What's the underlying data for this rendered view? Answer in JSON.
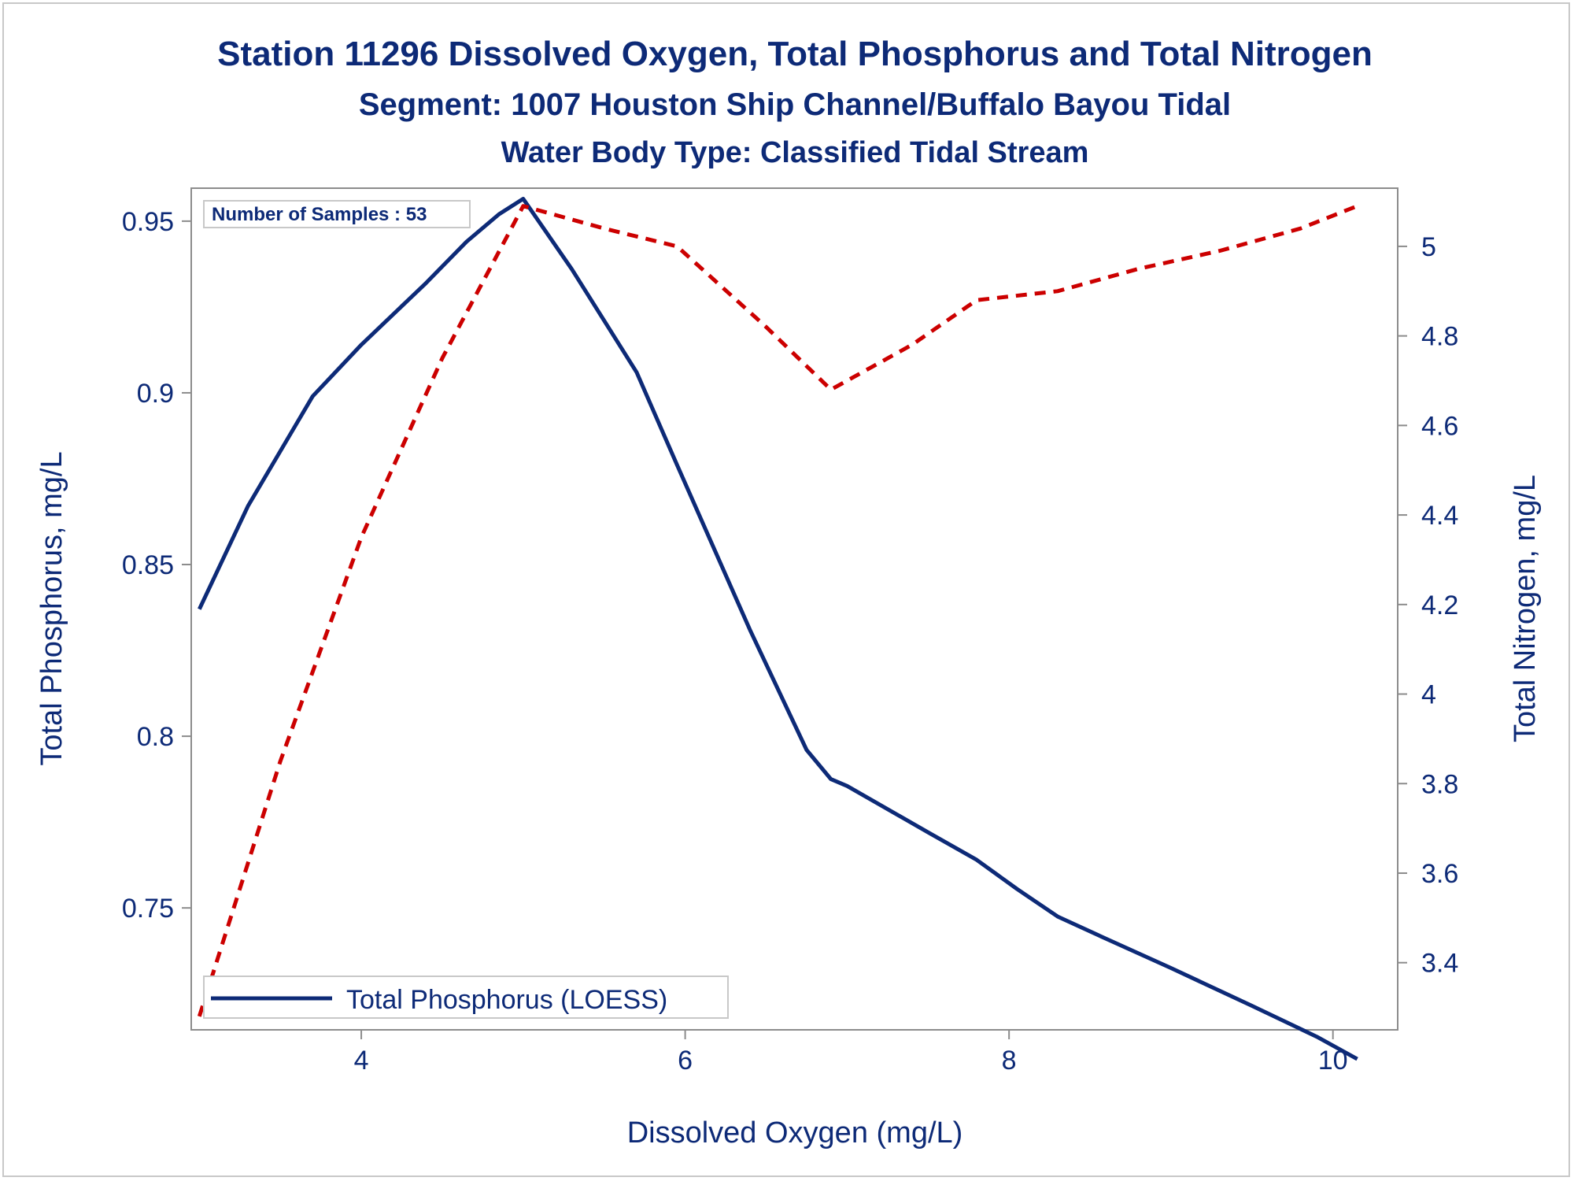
{
  "titles": {
    "line1": "Station 11296  Dissolved Oxygen, Total Phosphorus and Total Nitrogen",
    "line2": "Segment: 1007  Houston Ship Channel/Buffalo Bayou Tidal",
    "line3": "Water Body Type: Classified Tidal Stream"
  },
  "inset": {
    "samples_label": "Number of Samples : 53"
  },
  "legend": {
    "entries": [
      "Total Phosphorus (LOESS)"
    ]
  },
  "colors": {
    "navy": "#0d2a77",
    "red": "#cc0000",
    "frame": "#8c8c8c"
  },
  "chart_data": {
    "type": "line",
    "xlabel": "Dissolved Oxygen (mg/L)",
    "ylabel": "Total Phosphorus, mg/L",
    "y2label": "Total Nitrogen, mg/L",
    "xlim": [
      2.95,
      10.4
    ],
    "ylim": [
      0.7145,
      0.9596
    ],
    "y2lim": [
      3.25,
      5.13
    ],
    "xticks": [
      "4",
      "6",
      "8",
      "10"
    ],
    "yticks": [
      "0.75",
      "0.8",
      "0.85",
      "0.9",
      "0.95"
    ],
    "y2ticks": [
      "3.4",
      "3.6",
      "3.8",
      "4",
      "4.2",
      "4.4",
      "4.6",
      "4.8",
      "5"
    ],
    "legend_position": "bottom-left",
    "series": [
      {
        "name": "Total Phosphorus (LOESS)",
        "axis": "left",
        "style": "solid",
        "x": [
          3.0,
          3.3,
          3.7,
          4.0,
          4.4,
          4.65,
          4.85,
          5.0,
          5.3,
          5.7,
          5.95,
          6.4,
          6.75,
          6.9,
          7.0,
          7.5,
          7.8,
          8.05,
          8.3,
          8.6,
          9.0,
          9.5,
          9.9,
          10.15
        ],
        "values": [
          0.837,
          0.867,
          0.899,
          0.914,
          0.932,
          0.944,
          0.952,
          0.9565,
          0.936,
          0.906,
          0.879,
          0.831,
          0.796,
          0.7875,
          0.7855,
          0.772,
          0.764,
          0.7555,
          0.7475,
          0.741,
          0.7325,
          0.7215,
          0.7125,
          0.706
        ]
      },
      {
        "name": "",
        "axis": "right",
        "style": "dashed",
        "x": [
          3.0,
          3.5,
          4.0,
          4.5,
          5.0,
          5.5,
          5.95,
          6.5,
          6.9,
          7.4,
          7.8,
          8.3,
          8.8,
          9.3,
          9.8,
          10.15
        ],
        "values": [
          3.28,
          3.85,
          4.35,
          4.75,
          5.09,
          5.04,
          5.0,
          4.82,
          4.68,
          4.78,
          4.88,
          4.9,
          4.95,
          4.99,
          5.04,
          5.09
        ]
      }
    ]
  }
}
